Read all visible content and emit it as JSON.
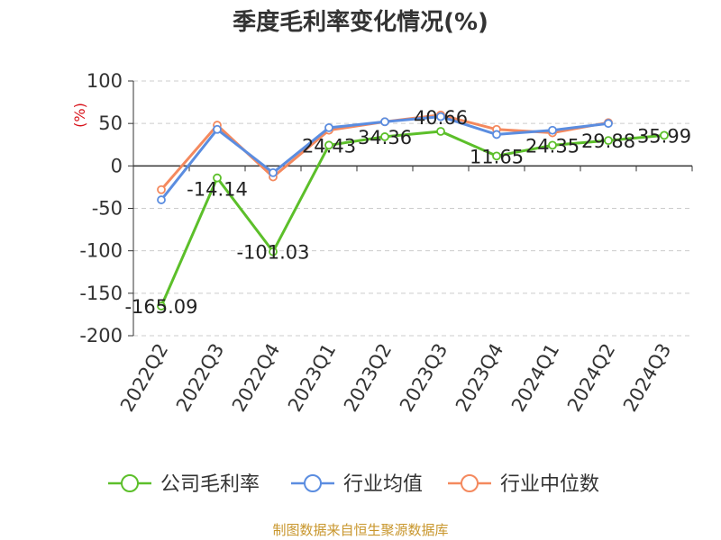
{
  "title": "季度毛利率变化情况(%)",
  "source": "制图数据来自恒生聚源数据库",
  "chart_data": {
    "type": "line",
    "title": "季度毛利率变化情况(%)",
    "ylabel": "(%)",
    "xlabel": "",
    "ylim": [
      -200,
      100
    ],
    "yticks": [
      100,
      50,
      0,
      -50,
      -100,
      -150,
      -200
    ],
    "grid": true,
    "legend_position": "bottom",
    "categories": [
      "2022Q2",
      "2022Q3",
      "2022Q4",
      "2023Q1",
      "2023Q2",
      "2023Q3",
      "2023Q4",
      "2024Q1",
      "2024Q2",
      "2024Q3"
    ],
    "series": [
      {
        "name": "公司毛利率",
        "color": "#5cbf2a",
        "values": [
          -165.09,
          -14.14,
          -101.03,
          24.43,
          34.36,
          40.66,
          11.65,
          24.35,
          29.88,
          35.99
        ],
        "labels": [
          "-165.09",
          "-14.14",
          "-101.03",
          "24.43",
          "34.36",
          "40.66",
          "11.65",
          "24.35",
          "29.88",
          "35.99"
        ]
      },
      {
        "name": "行业均值",
        "color": "#5b8de0",
        "values": [
          -40,
          43,
          -8,
          45,
          52,
          58,
          37,
          42,
          50,
          null
        ]
      },
      {
        "name": "行业中位数",
        "color": "#f4895e",
        "values": [
          -28,
          48,
          -13,
          42,
          52,
          60,
          43,
          39,
          51,
          null
        ]
      }
    ]
  }
}
